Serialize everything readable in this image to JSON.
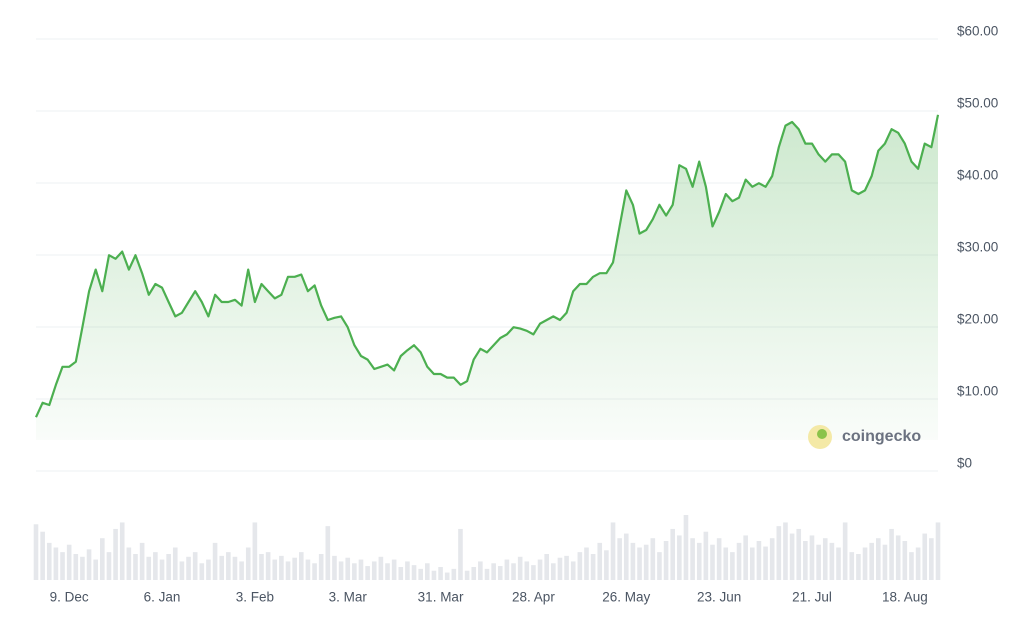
{
  "chart_data": [
    {
      "type": "line",
      "color": "#4caf50",
      "categories": [
        null,
        null,
        null,
        null,
        null,
        "9. Dec",
        null,
        null,
        null,
        null,
        null,
        null,
        null,
        null,
        null,
        null,
        null,
        null,
        null,
        "6. Jan",
        null,
        null,
        null,
        null,
        null,
        null,
        null,
        null,
        null,
        null,
        null,
        null,
        null,
        "3. Feb",
        null,
        null,
        null,
        null,
        null,
        null,
        null,
        null,
        null,
        null,
        null,
        null,
        null,
        "3. Mar",
        null,
        null,
        null,
        null,
        null,
        null,
        null,
        null,
        null,
        null,
        null,
        null,
        null,
        "31. Mar",
        null,
        null,
        null,
        null,
        null,
        null,
        null,
        null,
        null,
        null,
        null,
        null,
        null,
        "28. Apr",
        null,
        null,
        null,
        null,
        null,
        null,
        null,
        null,
        null,
        null,
        null,
        null,
        null,
        "26. May",
        null,
        null,
        null,
        null,
        null,
        null,
        null,
        null,
        null,
        null,
        null,
        null,
        null,
        "23. Jun",
        null,
        null,
        null,
        null,
        null,
        null,
        null,
        null,
        null,
        null,
        null,
        null,
        null,
        "21. Jul",
        null,
        null,
        null,
        null,
        null,
        null,
        null,
        null,
        null,
        null,
        null,
        null,
        null,
        "18. Aug",
        null,
        null,
        null,
        null,
        null
      ],
      "values": [
        6.5,
        8.5,
        8.2,
        11,
        13.5,
        13.5,
        14.2,
        19,
        24,
        27,
        24,
        29,
        28.5,
        29.5,
        27,
        29,
        26.5,
        23.5,
        25,
        24.5,
        22.5,
        20.5,
        21,
        22.5,
        24,
        22.5,
        20.5,
        23.5,
        22.5,
        22.5,
        22.8,
        22,
        27,
        22.5,
        25,
        24,
        23,
        23.5,
        26,
        26,
        26.3,
        24,
        24.8,
        22,
        20,
        20.3,
        20.5,
        19,
        16.5,
        15,
        14.5,
        13.2,
        13.5,
        13.8,
        13,
        15,
        15.8,
        16.5,
        15.5,
        13.5,
        12.5,
        12.5,
        12,
        12,
        11,
        11.5,
        14.5,
        16,
        15.5,
        16.5,
        17.5,
        18,
        19,
        18.8,
        18.5,
        18,
        19.5,
        20,
        20.5,
        20,
        21,
        24,
        25,
        25,
        26,
        26.5,
        26.5,
        28,
        33,
        38,
        36,
        32,
        32.5,
        34,
        36,
        34.5,
        36,
        41.5,
        41,
        38.5,
        42,
        38.5,
        33,
        35,
        37.5,
        36.5,
        37,
        39.5,
        38.5,
        39,
        38.5,
        40,
        44,
        47,
        47.5,
        46.5,
        44.5,
        44.5,
        43,
        42,
        43,
        43,
        42,
        38,
        37.5,
        38,
        40,
        43.5,
        44.5,
        46.5,
        46,
        44.5,
        42,
        41,
        44.5,
        44,
        48.5
      ],
      "ylim": [
        0,
        60
      ],
      "yticks": [
        {
          "value": 0,
          "label": "$0"
        },
        {
          "value": 10,
          "label": "$10.00"
        },
        {
          "value": 20,
          "label": "$20.00"
        },
        {
          "value": 30,
          "label": "$30.00"
        },
        {
          "value": 40,
          "label": "$40.00"
        },
        {
          "value": 50,
          "label": "$50.00"
        },
        {
          "value": 60,
          "label": "$60.00"
        }
      ],
      "grid": true,
      "watermark": "coingecko"
    },
    {
      "type": "bar",
      "color": "#e5e7eb",
      "values": [
        60,
        52,
        40,
        35,
        30,
        38,
        28,
        25,
        33,
        22,
        45,
        30,
        55,
        62,
        35,
        28,
        40,
        25,
        30,
        22,
        28,
        35,
        20,
        25,
        30,
        18,
        22,
        40,
        26,
        30,
        25,
        20,
        35,
        62,
        28,
        30,
        22,
        26,
        20,
        24,
        30,
        22,
        18,
        28,
        58,
        26,
        20,
        24,
        18,
        22,
        15,
        20,
        25,
        18,
        22,
        14,
        20,
        16,
        12,
        18,
        10,
        14,
        8,
        12,
        55,
        10,
        14,
        20,
        12,
        18,
        15,
        22,
        18,
        25,
        20,
        16,
        22,
        28,
        18,
        24,
        26,
        20,
        30,
        35,
        28,
        40,
        32,
        62,
        45,
        50,
        40,
        35,
        38,
        45,
        30,
        42,
        55,
        48,
        70,
        45,
        40,
        52,
        38,
        45,
        35,
        30,
        40,
        48,
        35,
        42,
        36,
        45,
        58,
        62,
        50,
        55,
        42,
        48,
        38,
        45,
        40,
        35,
        62,
        30,
        28,
        35,
        40,
        45,
        38,
        55,
        48,
        42,
        30,
        35,
        50,
        45,
        62
      ]
    }
  ]
}
